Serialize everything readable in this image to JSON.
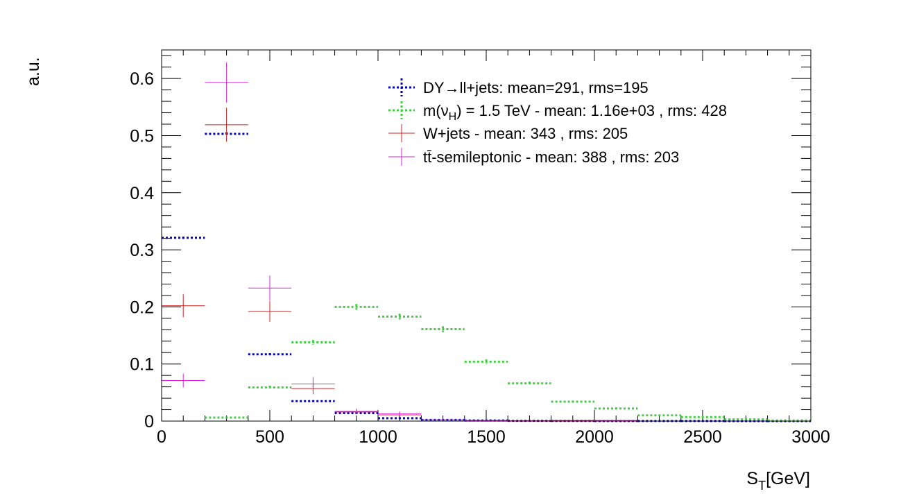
{
  "chart_data": {
    "type": "histogram",
    "xlabel_main": "S",
    "xlabel_sub": "T",
    "xlabel_rest": "[GeV]",
    "ylabel": "a.u.",
    "xlim": [
      0,
      3000
    ],
    "ylim": [
      0,
      0.65
    ],
    "xticks": [
      0,
      500,
      1000,
      1500,
      2000,
      2500,
      3000
    ],
    "xtick_labels": [
      "0",
      "500",
      "1000",
      "1500",
      "2000",
      "2500",
      "3000"
    ],
    "yticks": [
      0,
      0.1,
      0.2,
      0.3,
      0.4,
      0.5,
      0.6
    ],
    "ytick_labels": [
      "0",
      "0.1",
      "0.2",
      "0.3",
      "0.4",
      "0.5",
      "0.6"
    ],
    "bin_width": 200,
    "grid": false,
    "legend_position": "top-right",
    "series": [
      {
        "name": "DY→ll+jets: mean=291, rms=195",
        "legend": {
          "pre": "DY",
          "arrow": "→",
          "post": "ll+jets: mean=291, rms=195"
        },
        "style": "dotted",
        "color": "#0000cc",
        "x": [
          100,
          300,
          500,
          700,
          900,
          1100,
          1300,
          1500,
          1700,
          1900,
          2100,
          2300,
          2500,
          2700,
          2900
        ],
        "values": [
          0.321,
          0.503,
          0.117,
          0.035,
          0.014,
          0.005,
          0.002,
          0.001,
          0.0005,
          0.0003,
          0.0002,
          0.0001,
          0.0001,
          0.0,
          0.0
        ],
        "errors": [
          0.002,
          0.003,
          0.002,
          0.001,
          0.001,
          0.001,
          0.0005,
          0.0003,
          0.0002,
          0.0002,
          0.0001,
          0.0001,
          0.0001,
          0.0,
          0.0
        ]
      },
      {
        "name": "m(νH) = 1.5 TeV - mean: 1.16e+03 , rms: 428",
        "legend": {
          "pre": "m(ν",
          "sub": "H",
          "post": ") = 1.5 TeV - mean: 1.16e+03 , rms: 428"
        },
        "style": "dotted",
        "color": "#44cc44",
        "x": [
          300,
          500,
          700,
          900,
          1100,
          1300,
          1500,
          1700,
          1900,
          2100,
          2300,
          2500,
          2700,
          2900
        ],
        "values": [
          0.006,
          0.059,
          0.138,
          0.2,
          0.183,
          0.161,
          0.104,
          0.066,
          0.034,
          0.022,
          0.01,
          0.007,
          0.003,
          0.001
        ],
        "errors": [
          0.001,
          0.003,
          0.004,
          0.005,
          0.005,
          0.005,
          0.004,
          0.003,
          0.002,
          0.002,
          0.001,
          0.001,
          0.001,
          0.0005
        ]
      },
      {
        "name": "W+jets - mean: 343 , rms: 205",
        "legend": {
          "pre": "W+jets - mean: 343 , rms: 205"
        },
        "style": "solid",
        "color": "#cc2222",
        "x": [
          100,
          300,
          500,
          700,
          900,
          1100,
          1300,
          1500,
          1700,
          1900,
          2100
        ],
        "values": [
          0.202,
          0.519,
          0.192,
          0.057,
          0.016,
          0.011,
          0.002,
          0.001,
          0.0005,
          0.001,
          0.001
        ],
        "errors": [
          0.02,
          0.03,
          0.018,
          0.01,
          0.004,
          0.003,
          0.001,
          0.001,
          0.0005,
          0.001,
          0.001
        ]
      },
      {
        "name": "tt̄-semileptonic - mean: 388 , rms: 203",
        "legend": {
          "pre": "tt̄-semileptonic - mean: 388 , rms: 203"
        },
        "style": "solid",
        "color": "#dd22dd",
        "x": [
          100,
          300,
          500,
          700,
          900,
          1100,
          1300,
          1500,
          1700,
          1900,
          2100
        ],
        "values": [
          0.071,
          0.593,
          0.233,
          0.065,
          0.017,
          0.013,
          0.002,
          0.001,
          0.0005,
          0.0005,
          0.001
        ],
        "errors": [
          0.012,
          0.035,
          0.022,
          0.012,
          0.005,
          0.004,
          0.001,
          0.001,
          0.0005,
          0.0005,
          0.001
        ]
      }
    ]
  }
}
